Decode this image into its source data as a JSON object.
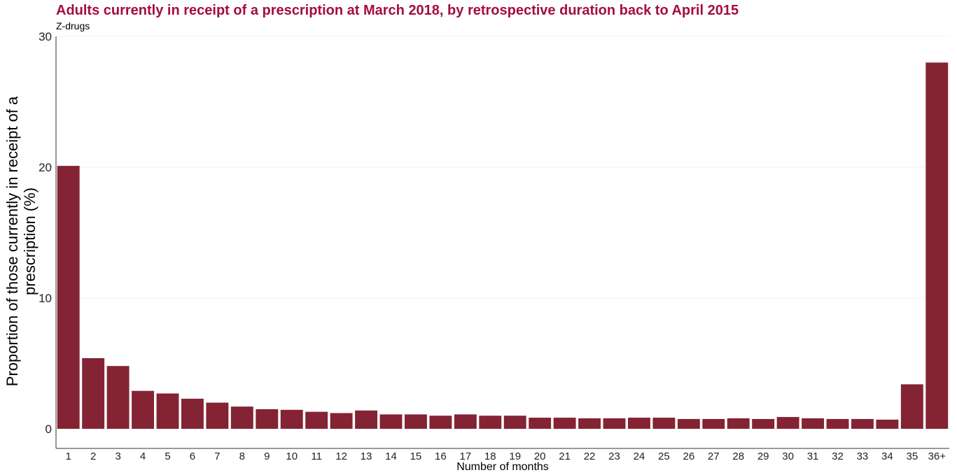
{
  "chart_data": {
    "type": "bar",
    "title": "Adults currently in receipt of a prescription at March 2018, by retrospective duration back to April 2015",
    "subtitle": "Z-drugs",
    "xlabel": "Number of months",
    "ylabel_lines": [
      "Proportion of those currently in receipt of a",
      "prescription (%)"
    ],
    "ylim": [
      -1.5,
      30
    ],
    "yticks": [
      0,
      10,
      20,
      30
    ],
    "bar_color": "#842333",
    "title_color": "#a50d3e",
    "gridlines": "faint horizontal",
    "categories": [
      "1",
      "2",
      "3",
      "4",
      "5",
      "6",
      "7",
      "8",
      "9",
      "10",
      "11",
      "12",
      "13",
      "14",
      "15",
      "16",
      "17",
      "18",
      "19",
      "20",
      "21",
      "22",
      "23",
      "24",
      "25",
      "26",
      "27",
      "28",
      "29",
      "30",
      "31",
      "32",
      "33",
      "34",
      "35",
      "36+"
    ],
    "values": [
      20.1,
      5.4,
      4.8,
      2.9,
      2.7,
      2.3,
      2.0,
      1.7,
      1.5,
      1.45,
      1.3,
      1.2,
      1.4,
      1.1,
      1.1,
      1.0,
      1.1,
      1.0,
      1.0,
      0.85,
      0.85,
      0.8,
      0.8,
      0.85,
      0.85,
      0.75,
      0.75,
      0.8,
      0.75,
      0.9,
      0.8,
      0.75,
      0.75,
      0.7,
      3.4,
      28.0
    ]
  }
}
